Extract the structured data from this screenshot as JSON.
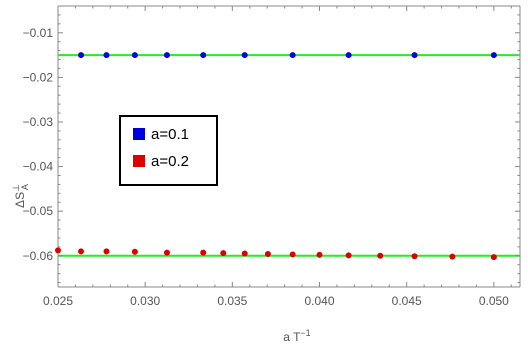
{
  "chart_data": {
    "type": "scatter",
    "xlabel_base": "a T",
    "xlabel_exponent": "−1",
    "ylabel_base": "ΔS",
    "ylabel_sup": "⊥",
    "ylabel_sub": "A",
    "xlim": [
      0.025,
      0.0515
    ],
    "ylim": [
      -0.067,
      -0.004
    ],
    "x_ticks": [
      0.025,
      0.03,
      0.035,
      0.04,
      0.045,
      0.05
    ],
    "x_tick_labels": [
      "0.025",
      "0.030",
      "0.035",
      "0.040",
      "0.045",
      "0.050"
    ],
    "y_ticks": [
      -0.06,
      -0.05,
      -0.04,
      -0.03,
      -0.02,
      -0.01
    ],
    "y_tick_labels": [
      "−0.06",
      "−0.05",
      "−0.04",
      "−0.03",
      "−0.02",
      "−0.01"
    ],
    "grid": false,
    "legend_position": "left-middle",
    "series": [
      {
        "name": "a=0.1",
        "color": "#0000dd",
        "x": [
          0.02632,
          0.02778,
          0.02941,
          0.03125,
          0.03333,
          0.03571,
          0.03846,
          0.04167,
          0.04545,
          0.05
        ],
        "y": [
          -0.015,
          -0.015,
          -0.015,
          -0.015,
          -0.015,
          -0.015,
          -0.015,
          -0.015,
          -0.015,
          -0.015
        ]
      },
      {
        "name": "a=0.2",
        "color": "#dd0000",
        "x": [
          0.025,
          0.02632,
          0.02778,
          0.02941,
          0.03125,
          0.03333,
          0.03448,
          0.03571,
          0.03704,
          0.03846,
          0.04,
          0.04167,
          0.04348,
          0.04545,
          0.04762,
          0.05
        ],
        "y": [
          -0.0588,
          -0.059,
          -0.059,
          -0.0591,
          -0.0593,
          -0.0593,
          -0.0594,
          -0.0595,
          -0.0596,
          -0.0597,
          -0.0598,
          -0.0599,
          -0.06,
          -0.0601,
          -0.0602,
          -0.0603
        ]
      }
    ],
    "reference_lines": [
      {
        "y": -0.015,
        "color": "#22ee22"
      },
      {
        "y": -0.06,
        "color": "#22ee22"
      }
    ]
  }
}
